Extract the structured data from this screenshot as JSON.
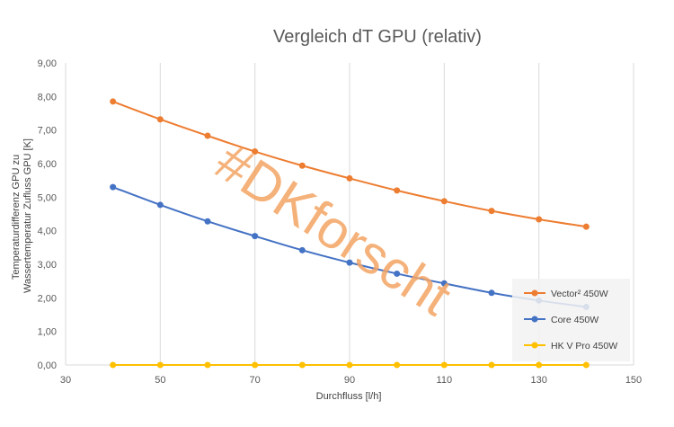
{
  "chart_data": {
    "type": "line",
    "title": "Vergleich dT GPU (relativ)",
    "xlabel": "Durchfluss [l/h]",
    "ylabel_line1": "Temperaturdifferenz GPU zu",
    "ylabel_line2": "Wassertemperatur Zufluss GPU  [K]",
    "xlim": [
      30,
      150
    ],
    "ylim": [
      0,
      9
    ],
    "x_ticks": [
      "30",
      "50",
      "70",
      "90",
      "110",
      "130",
      "150"
    ],
    "x_tick_values": [
      30,
      50,
      70,
      90,
      110,
      130,
      150
    ],
    "y_ticks": [
      "0,00",
      "1,00",
      "2,00",
      "3,00",
      "4,00",
      "5,00",
      "6,00",
      "7,00",
      "8,00",
      "9,00"
    ],
    "y_tick_values": [
      0,
      1,
      2,
      3,
      4,
      5,
      6,
      7,
      8,
      9
    ],
    "x": [
      40,
      50,
      60,
      70,
      80,
      90,
      100,
      110,
      120,
      130,
      140
    ],
    "series": [
      {
        "name": "Vector² 450W",
        "color": "#ed7d31",
        "values": [
          7.85,
          7.32,
          6.83,
          6.36,
          5.94,
          5.56,
          5.2,
          4.88,
          4.59,
          4.34,
          4.12
        ]
      },
      {
        "name": "Core 450W",
        "color": "#4472c4",
        "values": [
          5.3,
          4.77,
          4.28,
          3.84,
          3.42,
          3.05,
          2.72,
          2.43,
          2.15,
          1.92,
          1.73
        ]
      },
      {
        "name": "HK V Pro 450W",
        "color": "#ffc000",
        "values": [
          0,
          0,
          0,
          0,
          0,
          0,
          0,
          0,
          0,
          0,
          0
        ]
      }
    ],
    "legend": "right",
    "grid": "vertical",
    "watermark": "#DKforscht"
  }
}
